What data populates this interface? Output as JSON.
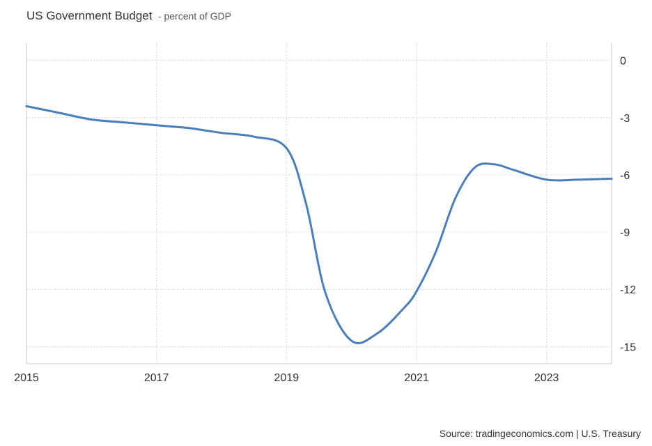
{
  "header": {
    "title": "US Government Budget",
    "subtitle": "- percent of GDP"
  },
  "footer": {
    "source": "Source: tradingeconomics.com | U.S. Treasury"
  },
  "colors": {
    "line": "#4a7ebb",
    "grid": "#d9d9d9",
    "axis": "#cccccc"
  },
  "chart_data": {
    "type": "line",
    "title": "US Government Budget",
    "subtitle": "percent of GDP",
    "xlabel": "",
    "ylabel": "",
    "x_ticks": [
      "2015",
      "2017",
      "2019",
      "2021",
      "2023"
    ],
    "y_ticks": [
      "0",
      "-3",
      "-6",
      "-9",
      "-12",
      "-15"
    ],
    "xlim": [
      2015.0,
      2024.0
    ],
    "ylim": [
      -15.9,
      0.9
    ],
    "grid": true,
    "y_axis_side": "right",
    "series": [
      {
        "values": [
          {
            "x": 2015.0,
            "y": -2.4
          },
          {
            "x": 2015.5,
            "y": -2.75
          },
          {
            "x": 2016.0,
            "y": -3.1
          },
          {
            "x": 2016.5,
            "y": -3.25
          },
          {
            "x": 2017.0,
            "y": -3.4
          },
          {
            "x": 2017.5,
            "y": -3.55
          },
          {
            "x": 2018.0,
            "y": -3.8
          },
          {
            "x": 2018.5,
            "y": -4.0
          },
          {
            "x": 2019.0,
            "y": -4.6
          },
          {
            "x": 2019.3,
            "y": -7.5
          },
          {
            "x": 2019.6,
            "y": -12.2
          },
          {
            "x": 2020.0,
            "y": -14.7
          },
          {
            "x": 2020.4,
            "y": -14.3
          },
          {
            "x": 2020.8,
            "y": -13.0
          },
          {
            "x": 2021.0,
            "y": -12.1
          },
          {
            "x": 2021.3,
            "y": -10.0
          },
          {
            "x": 2021.6,
            "y": -7.2
          },
          {
            "x": 2021.9,
            "y": -5.6
          },
          {
            "x": 2022.2,
            "y": -5.45
          },
          {
            "x": 2022.5,
            "y": -5.75
          },
          {
            "x": 2023.0,
            "y": -6.25
          },
          {
            "x": 2023.5,
            "y": -6.25
          },
          {
            "x": 2024.0,
            "y": -6.2
          }
        ]
      }
    ]
  }
}
